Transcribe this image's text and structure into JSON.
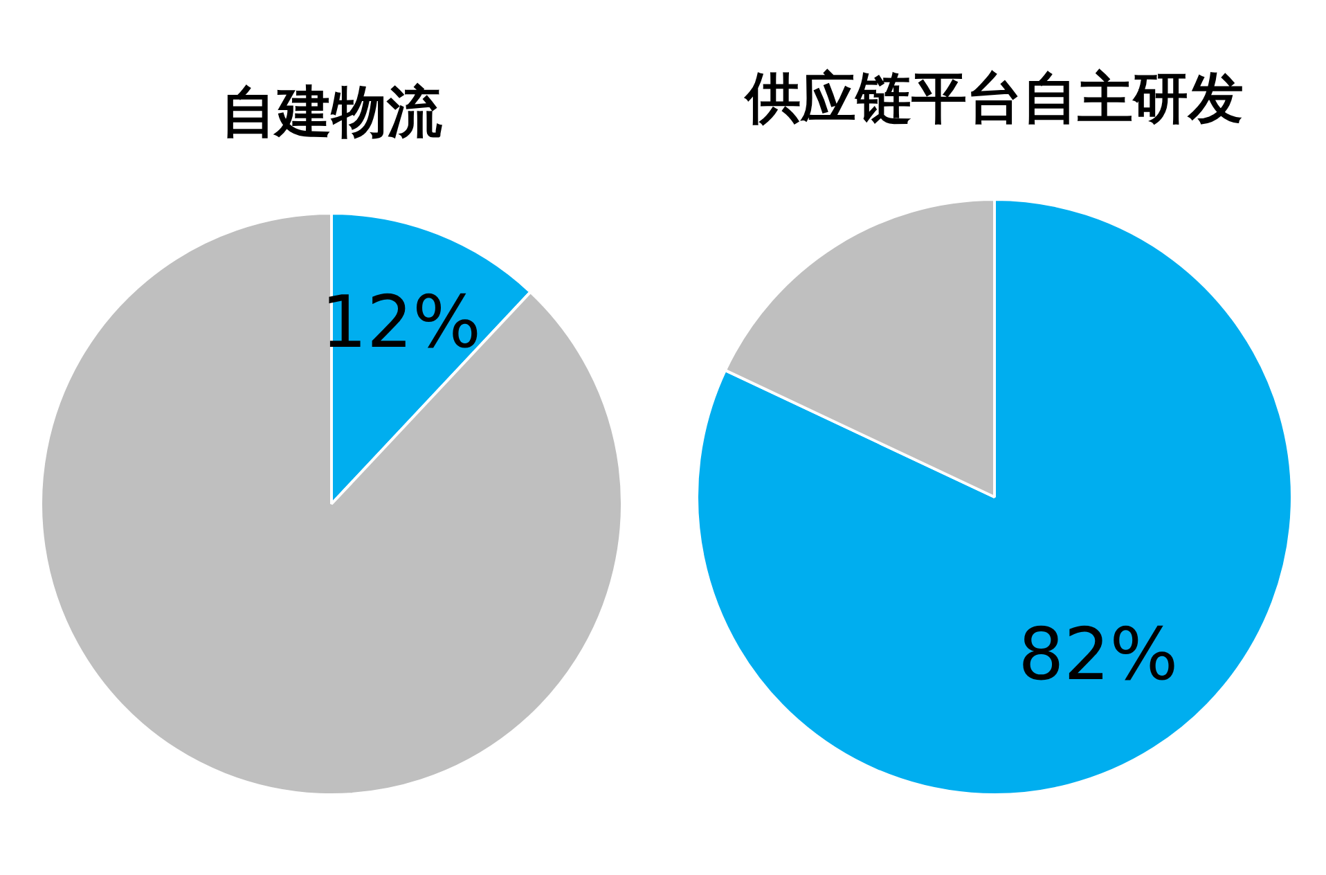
{
  "chart_data": [
    {
      "type": "pie",
      "title": "自建物流",
      "categories": [
        null,
        null
      ],
      "values": [
        12,
        88
      ],
      "colors": [
        "#00aeef",
        "#bfbfbf"
      ],
      "value_labels": [
        "12%",
        null
      ]
    },
    {
      "type": "pie",
      "title": "供应链平台自主研发",
      "categories": [
        null,
        null
      ],
      "values": [
        82,
        18
      ],
      "colors": [
        "#00aeef",
        "#bfbfbf"
      ],
      "value_labels": [
        "82%",
        null
      ]
    }
  ]
}
